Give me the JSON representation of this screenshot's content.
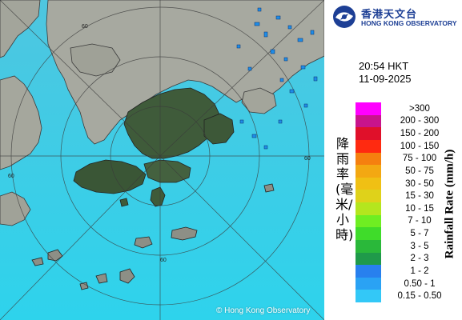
{
  "map": {
    "copyright": "© Hong Kong Observatory",
    "ring_label": "60",
    "colors": {
      "sea": "#3fd0e6",
      "land_dark": "#3d5a3a",
      "land_light": "#a9aaa0"
    }
  },
  "logo": {
    "name_cn": "香港天文台",
    "name_en": "HONG KONG OBSERVATORY",
    "icon": "hko-logo-icon"
  },
  "timestamp": {
    "time": "20:54 HKT",
    "date": "11-09-2025"
  },
  "legend": {
    "title_cn": "降雨率(毫米/小時)",
    "title_en": "Rainfall Rate (mm/h)",
    "items": [
      {
        "label": ">300",
        "color": "#ff00ff"
      },
      {
        "label": "200 - 300",
        "color": "#c8148c"
      },
      {
        "label": "150 - 200",
        "color": "#e0102a"
      },
      {
        "label": "100 - 150",
        "color": "#ff2a10"
      },
      {
        "label": "75 - 100",
        "color": "#f5800f"
      },
      {
        "label": "50 - 75",
        "color": "#f3a812"
      },
      {
        "label": "30 - 50",
        "color": "#f0c014"
      },
      {
        "label": "15 - 30",
        "color": "#dfd21a"
      },
      {
        "label": "10 - 15",
        "color": "#b4e61e"
      },
      {
        "label": "7 - 10",
        "color": "#6fee22"
      },
      {
        "label": "5 - 7",
        "color": "#3fdc2a"
      },
      {
        "label": "3 - 5",
        "color": "#2ab83a"
      },
      {
        "label": "2 - 3",
        "color": "#1f9a4a"
      },
      {
        "label": "1 - 2",
        "color": "#2880ee"
      },
      {
        "label": "0.50 - 1",
        "color": "#2aa2f4"
      },
      {
        "label": "0.15 - 0.50",
        "color": "#33c8f7"
      }
    ]
  }
}
